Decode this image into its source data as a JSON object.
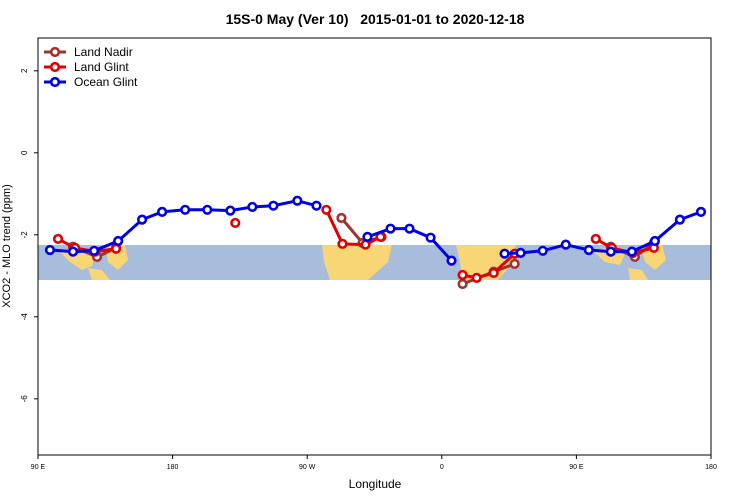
{
  "chart_data": {
    "type": "line",
    "title": "15S-0 May (Ver 10)   2015-01-01 to 2020-12-18",
    "x_label": "Longitude",
    "y_label": "XCO2 - MLO trend (ppm)",
    "xlim": [
      90,
      540
    ],
    "ylim": [
      -7.37,
      2.8
    ],
    "xticks": [
      {
        "value": 90,
        "label": "90 E"
      },
      {
        "value": 180,
        "label": "180"
      },
      {
        "value": 270,
        "label": "90 W"
      },
      {
        "value": 360,
        "label": "0"
      },
      {
        "value": 450,
        "label": "90 E"
      },
      {
        "value": 540,
        "label": "180"
      }
    ],
    "yticks": [
      2,
      0,
      -2,
      -4,
      -6
    ],
    "legend": "top-left",
    "series": [
      {
        "name": "Land Nadir",
        "color": "#a03232",
        "x": [
          113.4,
          129.5,
          142.2,
          null,
          292.9,
          307,
          319.7,
          null,
          373.9,
          394.7,
          408.7,
          null,
          473.0,
          489.1,
          501.8
        ],
        "values": [
          -2.29,
          -2.54,
          -2.32,
          null,
          -1.59,
          -2.2,
          -2.05,
          null,
          -3.2,
          -2.9,
          -2.71,
          null,
          -2.29,
          -2.54,
          -2.2
        ]
      },
      {
        "name": "Land Glint",
        "color": "#e00000",
        "x": [
          103.4,
          114.8,
          128.2,
          142.2,
          null,
          221.9,
          null,
          282.8,
          293.6,
          309,
          319,
          null,
          373.9,
          383.3,
          394.7,
          408.7,
          null,
          463,
          473.7,
          487.7,
          501.8
        ],
        "values": [
          -2.1,
          -2.32,
          -2.41,
          -2.34,
          null,
          -1.71,
          null,
          -1.39,
          -2.22,
          -2.24,
          -2.05,
          null,
          -2.98,
          -3.05,
          -2.93,
          -2.46,
          null,
          -2.1,
          -2.32,
          -2.44,
          -2.32
        ]
      },
      {
        "name": "Ocean Glint",
        "color": "#0000e6",
        "x": [
          98.0,
          113.4,
          127.5,
          143.6,
          159.6,
          173.0,
          188.4,
          203.2,
          218.6,
          233.3,
          247.4,
          263.4,
          276.2,
          null,
          310.3,
          325.7,
          338.4,
          352.5,
          366.5,
          null,
          402.0,
          412.7,
          427.5,
          442.9,
          458.3,
          473.0,
          487.1,
          502.5,
          519.2,
          533.3
        ],
        "values": [
          -2.37,
          -2.41,
          -2.39,
          -2.15,
          -1.63,
          -1.44,
          -1.39,
          -1.39,
          -1.41,
          -1.32,
          -1.29,
          -1.17,
          -1.29,
          null,
          -2.05,
          -1.85,
          -1.85,
          -2.07,
          -2.63,
          null,
          -2.46,
          -2.44,
          -2.39,
          -2.24,
          -2.37,
          -2.41,
          -2.41,
          -2.15,
          -1.63,
          -1.44
        ]
      }
    ]
  }
}
